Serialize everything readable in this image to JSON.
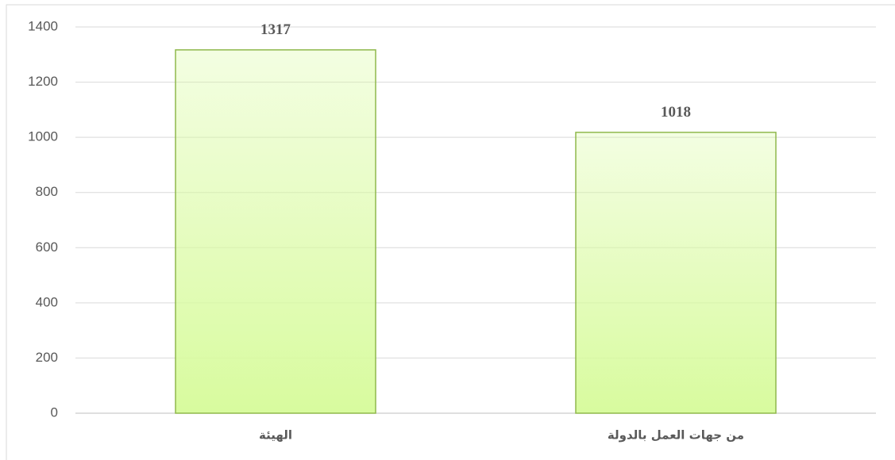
{
  "chart_data": {
    "type": "bar",
    "categories": [
      "الهيئة",
      "من جهات العمل بالدولة"
    ],
    "values": [
      1317,
      1018
    ],
    "color": "#d8fb9e",
    "edge_color": "#8fb84c",
    "ylim": [
      0,
      1400
    ],
    "yticks": [
      0,
      200,
      400,
      600,
      800,
      1000,
      1200,
      1400
    ],
    "grid": true
  }
}
